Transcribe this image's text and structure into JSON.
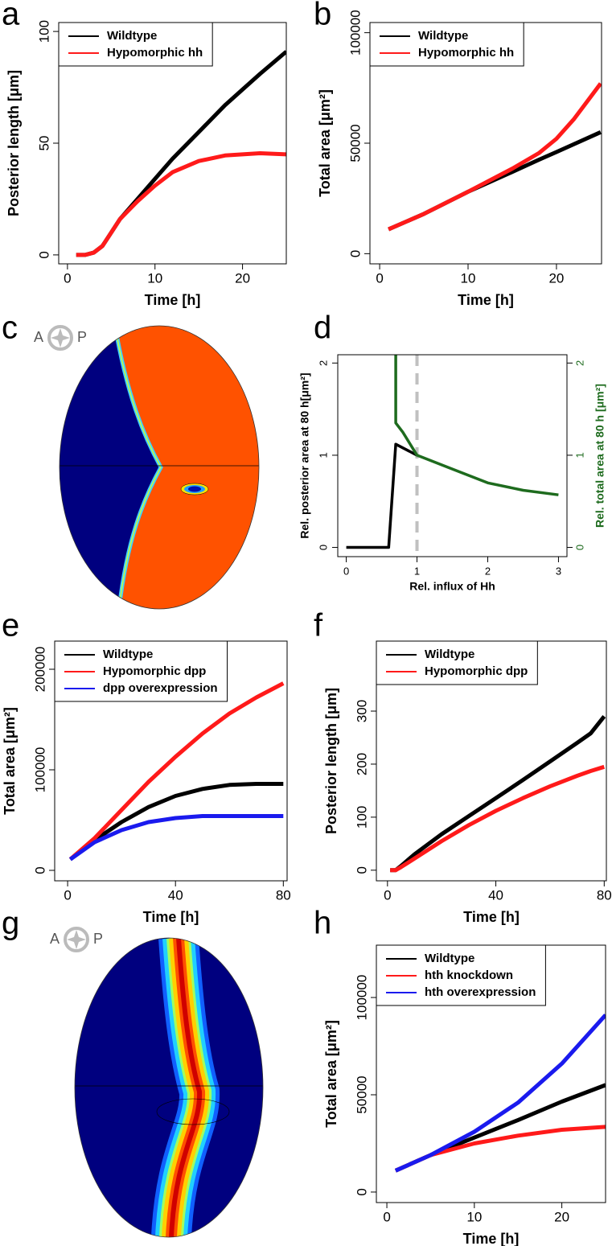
{
  "chart_data": [
    {
      "type": "line",
      "label": "a",
      "xlabel": "Time [h]",
      "ylabel": "Posterior length [μm]",
      "x": [
        1,
        2,
        3,
        4,
        5,
        6,
        8,
        10,
        12,
        15,
        18,
        20,
        22,
        25
      ],
      "series": [
        {
          "name": "Wildtype",
          "color": "#000000",
          "values": [
            0,
            0,
            1,
            4,
            10,
            16,
            25,
            34,
            43,
            55,
            67,
            74,
            81,
            91
          ]
        },
        {
          "name": "Hypomorphic hh",
          "color": "#ff1a1a",
          "values": [
            0,
            0,
            1,
            4,
            10,
            16,
            24,
            31,
            37,
            42,
            44.5,
            45,
            45.5,
            45
          ]
        }
      ],
      "xlim": [
        -1,
        25
      ],
      "ylim": [
        -4,
        104
      ],
      "xticks": [
        0,
        10,
        20
      ],
      "yticks": [
        0,
        50,
        100
      ],
      "legend": "topleft"
    },
    {
      "type": "line",
      "label": "b",
      "xlabel": "Time [h]",
      "ylabel": "Total area [μm²]",
      "x": [
        1,
        5,
        10,
        15,
        18,
        20,
        22,
        25
      ],
      "series": [
        {
          "name": "Wildtype",
          "color": "#000000",
          "values": [
            11000,
            18000,
            28000,
            37000,
            42500,
            46000,
            49600,
            55000
          ]
        },
        {
          "name": "Hypomorphic hh",
          "color": "#ff1a1a",
          "values": [
            11000,
            18000,
            28000,
            38500,
            45500,
            52000,
            61000,
            77000
          ]
        }
      ],
      "xlim": [
        -1.1,
        25.1
      ],
      "ylim": [
        -4600,
        104600
      ],
      "xticks": [
        0,
        10,
        20
      ],
      "yticks": [
        0,
        50000,
        100000
      ],
      "legend": "topleft"
    },
    {
      "type": "image",
      "label": "c",
      "compass": [
        "A",
        "P"
      ],
      "pattern": "boundary"
    },
    {
      "type": "line",
      "label": "d",
      "xlabel": "Rel. influx of Hh",
      "ylabel": "Rel. posterior area at 80 h[μm²]",
      "y2label": "Rel. total area at 80 h [μm²]",
      "series": [
        {
          "color": "#000000",
          "x": [
            0,
            0.25,
            0.5,
            0.6,
            0.7,
            1
          ],
          "values": [
            0,
            0,
            0,
            0,
            1.12,
            1
          ]
        },
        {
          "color": "#1e6b1e",
          "axis": "y2",
          "x": [
            0.7,
            0.7,
            0.8,
            1,
            1.5,
            2,
            2.5,
            3
          ],
          "values": [
            2.2,
            1.35,
            1.25,
            1,
            0.85,
            0.7,
            0.62,
            0.57
          ]
        }
      ],
      "vline": 1,
      "vline_color": "#c0c0c0",
      "xlim": [
        -0.12,
        3.12
      ],
      "ylim": [
        -0.1,
        2.09
      ],
      "y2lim": [
        -0.1,
        2.09
      ],
      "xticks": [
        0,
        1,
        2,
        3
      ],
      "yticks": [
        0,
        1,
        2
      ],
      "y2ticks": [
        0,
        1,
        2
      ]
    },
    {
      "type": "line",
      "label": "e",
      "xlabel": "Time [h]",
      "ylabel": "Total area [μm²]",
      "x": [
        1,
        10,
        20,
        30,
        40,
        50,
        60,
        70,
        80
      ],
      "series": [
        {
          "name": "Wildtype",
          "color": "#000000",
          "values": [
            11000,
            30000,
            48000,
            63000,
            74000,
            81000,
            85000,
            86000,
            86000
          ]
        },
        {
          "name": "Hypomorphic dpp",
          "color": "#ff1a1a",
          "values": [
            11000,
            32000,
            60000,
            88000,
            113000,
            136000,
            156000,
            172000,
            186000
          ]
        },
        {
          "name": "dpp overexpression",
          "color": "#1a1aee",
          "values": [
            11000,
            28000,
            40000,
            48000,
            52000,
            54000,
            54000,
            54000,
            54000
          ]
        }
      ],
      "xlim": [
        -4.8,
        81.4
      ],
      "ylim": [
        -10400,
        228000
      ],
      "xticks": [
        0,
        40,
        80
      ],
      "yticks": [
        0,
        100000,
        200000
      ],
      "legend": "topleft"
    },
    {
      "type": "line",
      "label": "f",
      "xlabel": "Time [h]",
      "ylabel": "Posterior length [μm]",
      "x": [
        1,
        3,
        5,
        10,
        20,
        30,
        40,
        50,
        60,
        70,
        75,
        80
      ],
      "series": [
        {
          "name": "Wildtype",
          "color": "#000000",
          "values": [
            0,
            0,
            8,
            30,
            68,
            102,
            136,
            170,
            205,
            240,
            258,
            290
          ]
        },
        {
          "name": "Hypomorphic dpp",
          "color": "#ff1a1a",
          "values": [
            0,
            0,
            6,
            22,
            55,
            85,
            112,
            136,
            158,
            178,
            187,
            195
          ]
        }
      ],
      "xlim": [
        -4.1,
        80.8
      ],
      "ylim": [
        -20,
        432
      ],
      "xticks": [
        0,
        40,
        80
      ],
      "yticks": [
        0,
        100,
        200,
        300
      ],
      "legend": "topleft"
    },
    {
      "type": "image",
      "label": "g",
      "compass": [
        "A",
        "P"
      ],
      "pattern": "stripe"
    },
    {
      "type": "line",
      "label": "h",
      "xlabel": "Time [h]",
      "ylabel": "Total area [μm²]",
      "x": [
        1,
        5,
        10,
        15,
        20,
        25
      ],
      "series": [
        {
          "name": "Wildtype",
          "color": "#000000",
          "values": [
            11000,
            19000,
            28000,
            37000,
            46500,
            55000
          ]
        },
        {
          "name": "hth knockdown",
          "color": "#ff1a1a",
          "values": [
            11000,
            19000,
            25000,
            29000,
            32000,
            33500
          ]
        },
        {
          "name": "hth overexpression",
          "color": "#1a1aee",
          "values": [
            11000,
            19000,
            31000,
            46000,
            66000,
            91000
          ]
        }
      ],
      "xlim": [
        -1.2,
        25
      ],
      "ylim": [
        -5400,
        126900
      ],
      "xticks": [
        0,
        10,
        20
      ],
      "yticks": [
        0,
        50000,
        100000
      ],
      "legend": "topleft"
    }
  ]
}
